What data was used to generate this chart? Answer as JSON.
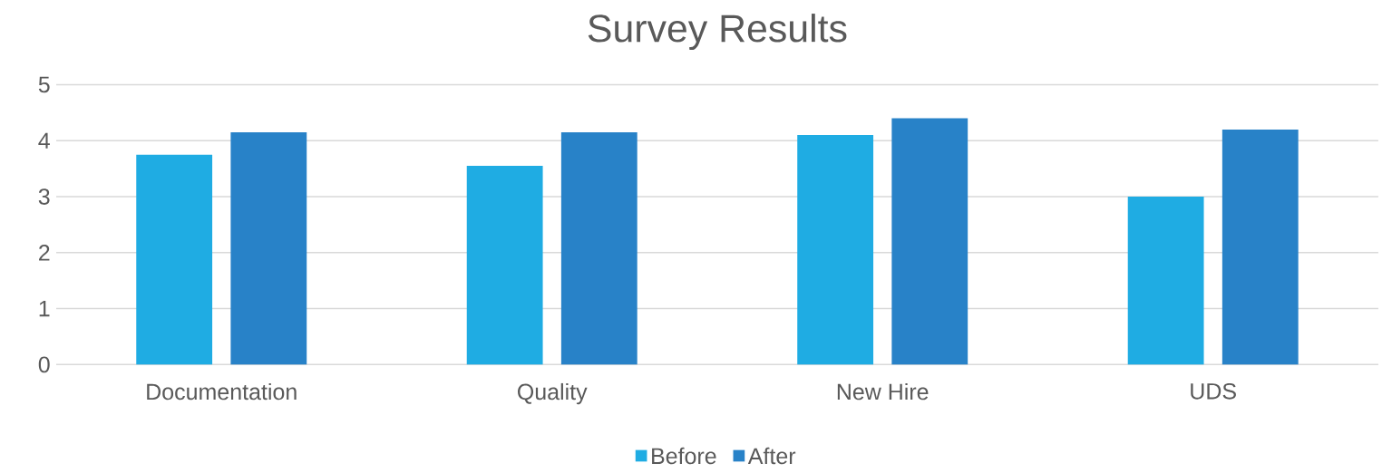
{
  "chart_data": {
    "type": "bar",
    "title": "Survey Results",
    "categories": [
      "Documentation",
      "Quality",
      "New Hire",
      "UDS"
    ],
    "series": [
      {
        "name": "Before",
        "color": "#1facE3",
        "values": [
          3.75,
          3.55,
          4.1,
          3
        ]
      },
      {
        "name": "After",
        "color": "#2882c8",
        "values": [
          4.15,
          4.15,
          4.4,
          4.2
        ]
      }
    ],
    "ylim": [
      0,
      5
    ],
    "yticks": [
      0,
      1,
      2,
      3,
      4,
      5
    ],
    "grid": "y",
    "legend": "bottom"
  }
}
